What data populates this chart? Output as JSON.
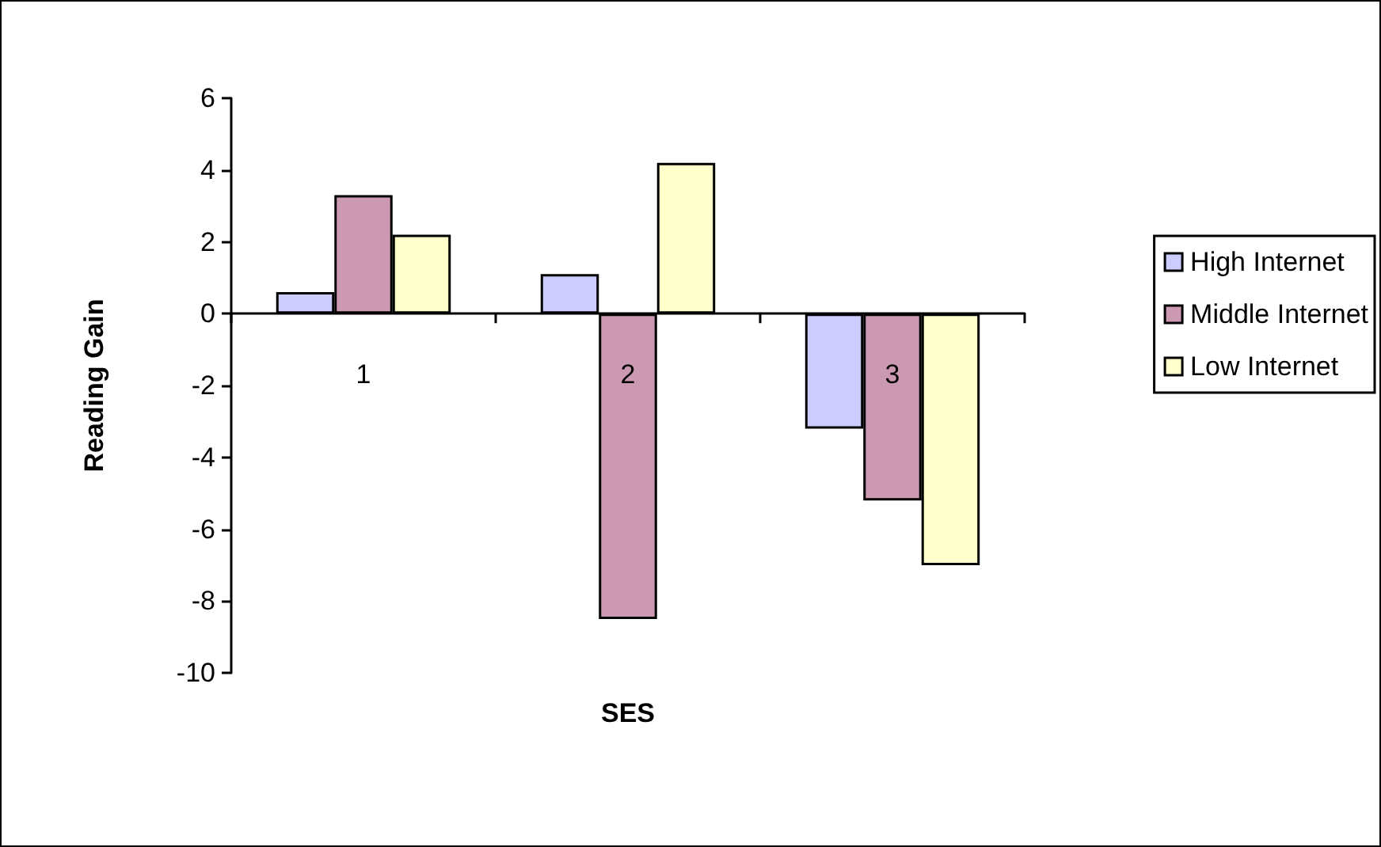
{
  "chart_data": {
    "type": "bar",
    "xlabel": "SES",
    "ylabel": "Reading Gain",
    "categories": [
      "1",
      "2",
      "3"
    ],
    "series": [
      {
        "name": "High Internet",
        "color": "#ccccff",
        "values": [
          0.6,
          1.1,
          -3.2
        ]
      },
      {
        "name": "Middle Internet",
        "color": "#cc99b2",
        "values": [
          3.3,
          -8.5,
          -5.2
        ]
      },
      {
        "name": "Low Internet",
        "color": "#ffffcc",
        "values": [
          2.2,
          4.2,
          -7.0
        ]
      }
    ],
    "ylim": [
      -10,
      6
    ],
    "yticks": [
      -10,
      -8,
      -6,
      -4,
      -2,
      0,
      2,
      4,
      6
    ],
    "grid": false,
    "legend": "right"
  }
}
